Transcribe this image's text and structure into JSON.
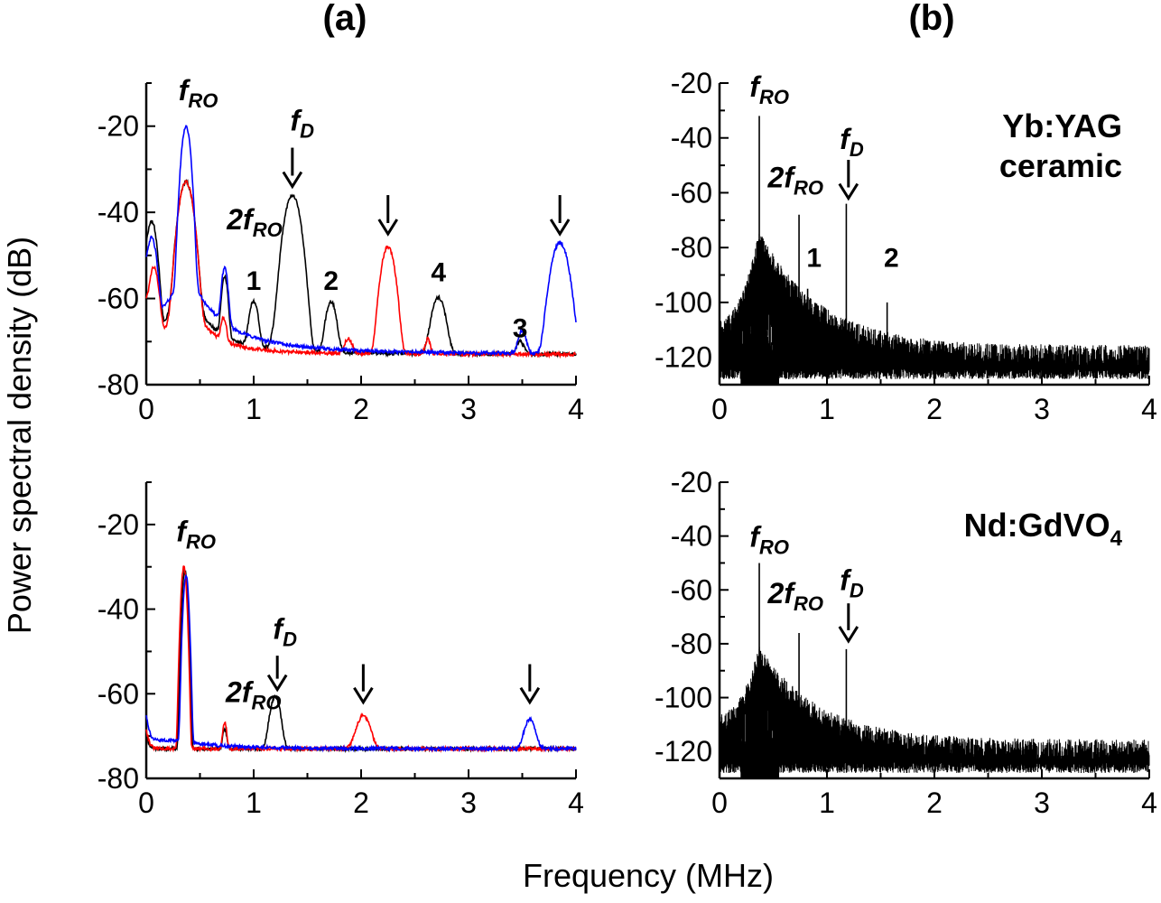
{
  "figure": {
    "panel_a_title": "(a)",
    "panel_b_title": "(b)",
    "ylabel": "Power spectral density (dB)",
    "xlabel": "Frequency (MHz)"
  },
  "chart_data": [
    {
      "id": "a_top",
      "type": "line",
      "xlim": [
        0,
        4
      ],
      "ylim": [
        -80,
        -10
      ],
      "xticks": [
        0,
        1,
        2,
        3,
        4
      ],
      "yticks": [
        -20,
        -40,
        -60,
        -80
      ],
      "baseline": -73,
      "series": [
        {
          "name": "black",
          "color": "#000000",
          "start": -55,
          "peaks": [
            [
              0.05,
              -42,
              0.03
            ],
            [
              0.37,
              -33,
              0.04
            ],
            [
              0.73,
              -55,
              0.02
            ],
            [
              1.0,
              -61,
              0.03
            ],
            [
              1.2,
              -70,
              0.03
            ],
            [
              1.36,
              -36,
              0.045
            ],
            [
              1.72,
              -61,
              0.035
            ],
            [
              2.72,
              -60,
              0.045
            ],
            [
              3.48,
              -73,
              0.03
            ]
          ],
          "lorentz": [
            [
              0.37,
              0.1,
              14
            ]
          ]
        },
        {
          "name": "red",
          "color": "#ff0000",
          "start": -62,
          "peaks": [
            [
              0.07,
              -53,
              0.03
            ],
            [
              0.37,
              -33,
              0.04
            ],
            [
              0.72,
              -66,
              0.02
            ],
            [
              1.88,
              -72,
              0.03
            ],
            [
              2.25,
              -48,
              0.04
            ],
            [
              2.62,
              -72,
              0.02
            ]
          ],
          "lorentz": [
            [
              0.37,
              0.1,
              12
            ]
          ]
        },
        {
          "name": "blue",
          "color": "#0000ff",
          "start": -55,
          "peaks": [
            [
              0.05,
              -46,
              0.03
            ],
            [
              0.37,
              -20,
              0.025
            ],
            [
              0.73,
              -53,
              0.02
            ],
            [
              3.5,
              -69,
              0.03
            ],
            [
              3.85,
              -47,
              0.05
            ]
          ],
          "lorentz": [
            [
              0.37,
              0.1,
              18
            ]
          ]
        }
      ],
      "annotations": [
        {
          "id": "fro",
          "main": "f",
          "sub": "RO",
          "x": 0.3,
          "y": -14
        },
        {
          "id": "fd",
          "main": "f",
          "sub": "D",
          "x": 1.34,
          "y": -21,
          "arrow": [
            1.36,
            -25,
            -34
          ]
        },
        {
          "id": "two_fro",
          "main": "2f",
          "sub": "RO",
          "x": 0.75,
          "y": -44
        },
        {
          "id": "arrow_red",
          "arrow": [
            2.25,
            -36,
            -45
          ]
        },
        {
          "id": "arrow_blue",
          "arrow": [
            3.85,
            -36,
            -45
          ]
        },
        {
          "id": "n1",
          "text": "1",
          "x": 1.0,
          "y": -58
        },
        {
          "id": "n2",
          "text": "2",
          "x": 1.72,
          "y": -58
        },
        {
          "id": "n4",
          "text": "4",
          "x": 2.72,
          "y": -56
        },
        {
          "id": "n3",
          "text": "3",
          "x": 3.48,
          "y": -69
        }
      ]
    },
    {
      "id": "a_bottom",
      "type": "line",
      "xlim": [
        0,
        4
      ],
      "ylim": [
        -80,
        -10
      ],
      "xticks": [
        0,
        1,
        2,
        3,
        4
      ],
      "yticks": [
        -20,
        -40,
        -60,
        -80
      ],
      "baseline": -73,
      "series": [
        {
          "name": "black",
          "color": "#000000",
          "start": -72,
          "peaks": [
            [
              0.36,
              -31,
              0.015
            ],
            [
              0.73,
              -70,
              0.015
            ],
            [
              1.2,
              -61,
              0.035
            ]
          ],
          "lorentz": []
        },
        {
          "name": "red",
          "color": "#ff0000",
          "start": -70,
          "peaks": [
            [
              0.35,
              -30,
              0.015
            ],
            [
              0.73,
              -68,
              0.015
            ],
            [
              2.02,
              -66,
              0.05
            ]
          ],
          "lorentz": []
        },
        {
          "name": "blue",
          "color": "#0000ff",
          "start": -66,
          "peaks": [
            [
              0.37,
              -32,
              0.015
            ],
            [
              3.57,
              -67,
              0.04
            ]
          ],
          "lorentz": [
            [
              0.18,
              0.35,
              2
            ]
          ]
        }
      ],
      "annotations": [
        {
          "id": "fro",
          "main": "f",
          "sub": "RO",
          "x": 0.28,
          "y": -24
        },
        {
          "id": "fd",
          "main": "f",
          "sub": "D",
          "x": 1.18,
          "y": -47,
          "arrow": [
            1.22,
            -51,
            -59
          ]
        },
        {
          "id": "two_fro",
          "main": "2f",
          "sub": "RO",
          "x": 0.74,
          "y": -62
        },
        {
          "id": "arrow_red",
          "arrow": [
            2.02,
            -53,
            -62
          ]
        },
        {
          "id": "arrow_blue",
          "arrow": [
            3.57,
            -53,
            -62
          ]
        }
      ]
    },
    {
      "id": "b_top",
      "type": "line",
      "material": "Yb:YAG",
      "material_line2": "ceramic",
      "xlim": [
        0,
        4
      ],
      "ylim": [
        -130,
        -20
      ],
      "xticks": [
        0,
        1,
        2,
        3,
        4
      ],
      "yticks": [
        -20,
        -40,
        -60,
        -80,
        -100,
        -120
      ],
      "noise_floor": -128,
      "envelope": {
        "peak_x": 0.37,
        "peak_y": -80,
        "tail": -122
      },
      "lines": [
        [
          0.37,
          -32
        ],
        [
          0.74,
          -68
        ],
        [
          1.18,
          -64
        ],
        [
          1.56,
          -100
        ],
        [
          0.82,
          -95
        ]
      ],
      "annotations": [
        {
          "id": "fro",
          "main": "f",
          "sub": "RO",
          "x": 0.28,
          "y": -25
        },
        {
          "id": "two_fro",
          "main": "2f",
          "sub": "RO",
          "x": 0.45,
          "y": -58
        },
        {
          "id": "fd",
          "main": "f",
          "sub": "D",
          "x": 1.12,
          "y": -44,
          "arrow": [
            1.2,
            -48,
            -62
          ]
        },
        {
          "id": "n1",
          "text": "1",
          "x": 0.88,
          "y": -87
        },
        {
          "id": "n2",
          "text": "2",
          "x": 1.6,
          "y": -87
        }
      ]
    },
    {
      "id": "b_bottom",
      "type": "line",
      "material": "Nd:GdVO",
      "material_sub": "4",
      "xlim": [
        0,
        4
      ],
      "ylim": [
        -130,
        -20
      ],
      "xticks": [
        0,
        1,
        2,
        3,
        4
      ],
      "yticks": [
        -20,
        -40,
        -60,
        -80,
        -100,
        -120
      ],
      "noise_floor": -128,
      "envelope": {
        "peak_x": 0.37,
        "peak_y": -87,
        "tail": -122
      },
      "lines": [
        [
          0.37,
          -50
        ],
        [
          0.74,
          -76
        ],
        [
          1.18,
          -82
        ],
        [
          0.82,
          -108
        ]
      ],
      "annotations": [
        {
          "id": "fro",
          "main": "f",
          "sub": "RO",
          "x": 0.28,
          "y": -44
        },
        {
          "id": "two_fro",
          "main": "2f",
          "sub": "RO",
          "x": 0.45,
          "y": -65
        },
        {
          "id": "fd",
          "main": "f",
          "sub": "D",
          "x": 1.12,
          "y": -60,
          "arrow": [
            1.2,
            -65,
            -79
          ]
        }
      ]
    }
  ]
}
